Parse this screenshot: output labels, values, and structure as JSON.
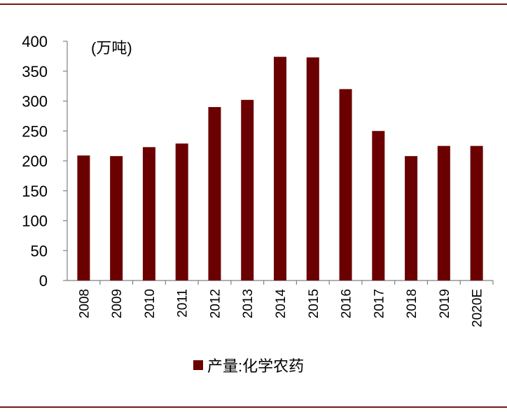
{
  "chart_data": {
    "type": "bar",
    "unit_label": "(万吨)",
    "categories": [
      "2008",
      "2009",
      "2010",
      "2011",
      "2012",
      "2013",
      "2014",
      "2015",
      "2016",
      "2017",
      "2018",
      "2019",
      "2020E"
    ],
    "series": [
      {
        "name": "产量:化学农药",
        "color": "#6b0000",
        "values": [
          209,
          208,
          223,
          229,
          290,
          302,
          374,
          373,
          320,
          250,
          208,
          225,
          225
        ]
      }
    ],
    "ylim": [
      0,
      400
    ],
    "yticks": [
      0,
      50,
      100,
      150,
      200,
      250,
      300,
      350,
      400
    ],
    "legend_position": "bottom-center",
    "grid": false
  },
  "colors": {
    "frame_line": "#7a1515",
    "axis": "#808080",
    "bar": "#6b0000"
  }
}
